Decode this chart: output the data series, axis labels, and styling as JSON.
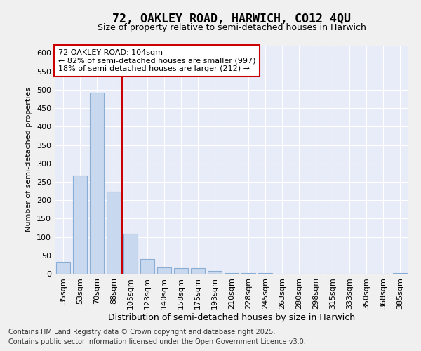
{
  "title1": "72, OAKLEY ROAD, HARWICH, CO12 4QU",
  "title2": "Size of property relative to semi-detached houses in Harwich",
  "xlabel": "Distribution of semi-detached houses by size in Harwich",
  "ylabel": "Number of semi-detached properties",
  "categories": [
    "35sqm",
    "53sqm",
    "70sqm",
    "88sqm",
    "105sqm",
    "123sqm",
    "140sqm",
    "158sqm",
    "175sqm",
    "193sqm",
    "210sqm",
    "228sqm",
    "245sqm",
    "263sqm",
    "280sqm",
    "298sqm",
    "315sqm",
    "333sqm",
    "350sqm",
    "368sqm",
    "385sqm"
  ],
  "values": [
    33,
    268,
    492,
    224,
    109,
    40,
    17,
    15,
    15,
    7,
    2,
    2,
    1,
    0,
    0,
    0,
    0,
    0,
    0,
    0,
    2
  ],
  "bar_color": "#c8d8ee",
  "bar_edge_color": "#8aadd4",
  "vline_x_idx": 4,
  "vline_color": "#cc0000",
  "annotation_title": "72 OAKLEY ROAD: 104sqm",
  "annotation_line1": "← 82% of semi-detached houses are smaller (997)",
  "annotation_line2": "18% of semi-detached houses are larger (212) →",
  "annotation_box_color": "#cc0000",
  "ylim": [
    0,
    620
  ],
  "yticks": [
    0,
    50,
    100,
    150,
    200,
    250,
    300,
    350,
    400,
    450,
    500,
    550,
    600
  ],
  "footnote1": "Contains HM Land Registry data © Crown copyright and database right 2025.",
  "footnote2": "Contains public sector information licensed under the Open Government Licence v3.0.",
  "bg_color": "#f0f0f0",
  "plot_bg_color": "#e8ecf8",
  "grid_color": "#ffffff",
  "title1_fontsize": 12,
  "title2_fontsize": 9,
  "xlabel_fontsize": 9,
  "ylabel_fontsize": 8,
  "tick_fontsize": 8,
  "annot_fontsize": 8,
  "footnote_fontsize": 7
}
